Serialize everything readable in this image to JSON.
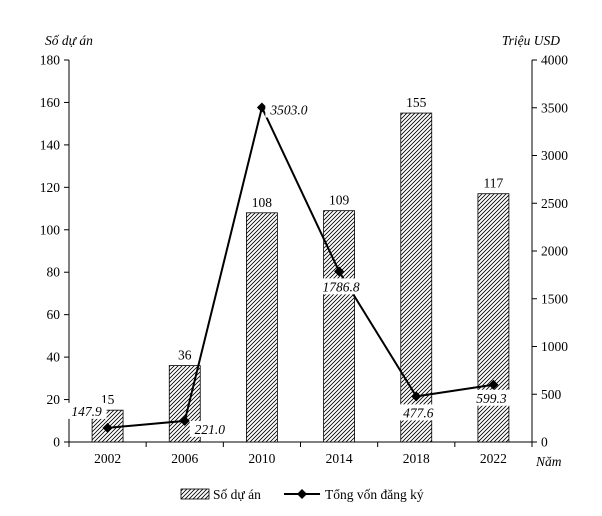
{
  "chart_data": {
    "type": "bar",
    "categories": [
      "2002",
      "2006",
      "2010",
      "2014",
      "2018",
      "2022"
    ],
    "x_axis_unit": "Năm",
    "series": [
      {
        "name": "Số dự án",
        "kind": "bar",
        "axis": "left",
        "values": [
          15,
          36,
          108,
          109,
          155,
          117
        ],
        "labels": [
          "15",
          "36",
          "108",
          "109",
          "155",
          "117"
        ],
        "pattern": "diagonal-hatch"
      },
      {
        "name": "Tổng vốn đăng ký",
        "kind": "line",
        "axis": "right",
        "values": [
          147.9,
          221.0,
          3503.0,
          1786.8,
          477.6,
          599.3
        ],
        "labels": [
          "147.9",
          "221.0",
          "3503.0",
          "1786.8",
          "477.6",
          "599.3"
        ],
        "marker": "diamond"
      }
    ],
    "y_left": {
      "title": "Số dự án",
      "ylim": [
        0,
        180
      ],
      "ticks": [
        "0",
        "20",
        "40",
        "60",
        "80",
        "100",
        "120",
        "140",
        "160",
        "180"
      ]
    },
    "y_right": {
      "title": "Triệu USD",
      "ylim": [
        0,
        4000
      ],
      "ticks": [
        "0",
        "500",
        "1000",
        "1500",
        "2000",
        "2500",
        "3000",
        "3500",
        "4000"
      ]
    },
    "legend": {
      "position": "bottom-center",
      "items": [
        "Số dự án",
        "Tổng vốn đăng ký"
      ]
    },
    "grid": false,
    "colors": {
      "ink": "#000000",
      "background": "#ffffff"
    }
  }
}
